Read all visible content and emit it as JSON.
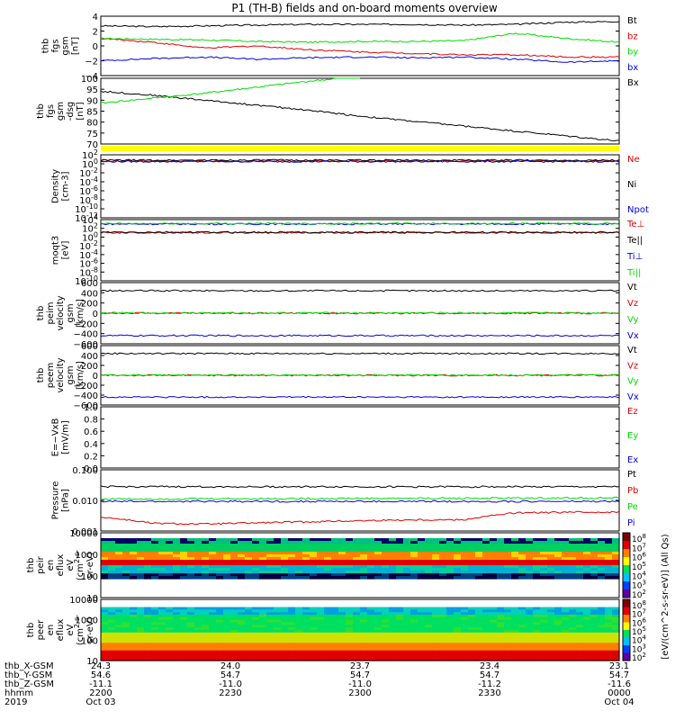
{
  "title": "P1 (TH-B) fields and on-board moments overview",
  "footer": {
    "labels": [
      "thb_X-GSM",
      "thb_Y-GSM",
      "thb_Z-GSM",
      "hhmm",
      "2019"
    ],
    "columns": [
      {
        "x": "24.3",
        "y": "54.6",
        "z": "-11.1",
        "hhmm": "2200",
        "date": "Oct 03"
      },
      {
        "x": "24.0",
        "y": "54.7",
        "z": "-11.0",
        "hhmm": "2230",
        "date": ""
      },
      {
        "x": "23.7",
        "y": "54.7",
        "z": "-11.0",
        "hhmm": "2300",
        "date": ""
      },
      {
        "x": "23.4",
        "y": "54.7",
        "z": "-11.2",
        "hhmm": "2330",
        "date": ""
      },
      {
        "x": "23.1",
        "y": "54.7",
        "z": "-11.6",
        "hhmm": "0000",
        "date": "Oct 04"
      }
    ]
  },
  "colorbar": {
    "label": "[eV/(cm^2-s-sr-eV)] (All Qs)",
    "ticks": [
      "10^8",
      "10^7",
      "10^6",
      "10^5",
      "10^4",
      "10^3",
      "10^2"
    ]
  },
  "colors": {
    "black": "#000000",
    "red": "#dd0000",
    "green": "#00dd00",
    "blue": "#0000dd",
    "yellow": "#ffff00",
    "purple": "#800080"
  },
  "chart_data": [
    {
      "type": "line",
      "ylabel": [
        "thb",
        "fgs",
        "gsm",
        "[nT]"
      ],
      "yticks": [
        "4",
        "2",
        "0",
        "−2",
        "−4"
      ],
      "ylim": [
        -4,
        4
      ],
      "series": [
        {
          "name": "Bt",
          "color": "black",
          "x": [
            0,
            0.1,
            0.2,
            0.3,
            0.4,
            0.5,
            0.6,
            0.7,
            0.8,
            0.9,
            1.0
          ],
          "y": [
            2.7,
            2.6,
            2.7,
            2.8,
            2.9,
            2.9,
            2.9,
            2.8,
            2.9,
            3.2,
            3.3
          ]
        },
        {
          "name": "bz",
          "color": "red",
          "x": [
            0,
            0.1,
            0.2,
            0.3,
            0.4,
            0.5,
            0.6,
            0.7,
            0.8,
            0.9,
            1.0
          ],
          "y": [
            1.0,
            0.5,
            -0.3,
            0.0,
            -0.5,
            -0.8,
            -1.0,
            -1.2,
            -1.2,
            -1.5,
            -1.5
          ]
        },
        {
          "name": "by",
          "color": "green",
          "x": [
            0,
            0.1,
            0.2,
            0.3,
            0.4,
            0.5,
            0.6,
            0.7,
            0.8,
            0.9,
            1.0
          ],
          "y": [
            1.0,
            0.9,
            0.8,
            0.6,
            0.5,
            0.6,
            0.6,
            0.7,
            1.7,
            1.0,
            0.5
          ]
        },
        {
          "name": "bx",
          "color": "blue",
          "x": [
            0,
            0.1,
            0.2,
            0.3,
            0.4,
            0.5,
            0.6,
            0.7,
            0.8,
            0.9,
            1.0
          ],
          "y": [
            -2.0,
            -1.7,
            -1.5,
            -1.8,
            -1.6,
            -1.5,
            -1.6,
            -1.5,
            -1.8,
            -2.2,
            -2.0
          ]
        }
      ]
    },
    {
      "type": "line",
      "ylabel": [
        "thb",
        "fgs",
        "gsm",
        "-dsg",
        "[nT]"
      ],
      "yticks": [
        "100",
        "95",
        "90",
        "85",
        "80",
        "75",
        "70"
      ],
      "ylim": [
        67,
        100
      ],
      "series": [
        {
          "name": "Bx",
          "color": "black",
          "x": [
            0,
            0.1,
            0.2,
            0.3,
            0.4,
            0.5,
            0.6,
            0.7,
            0.8,
            0.9,
            1.0
          ],
          "y": [
            93.5,
            91.5,
            89.0,
            86.5,
            84.0,
            81.0,
            78.5,
            76.0,
            73.5,
            71.0,
            68.5
          ]
        },
        {
          "name": "",
          "color": "green",
          "x": [
            0,
            0.1,
            0.2,
            0.3,
            0.4,
            0.5
          ],
          "y": [
            87.5,
            90.0,
            92.5,
            95.5,
            98.5,
            101
          ]
        }
      ]
    },
    {
      "type": "line",
      "ylabel": [
        "Density",
        "[cm-3]"
      ],
      "yticks": [
        "10^2",
        "10^0",
        "10^-2",
        "10^-4",
        "10^-6",
        "10^-8",
        "10^-10",
        "10^-12"
      ],
      "ylim": [
        -12,
        2
      ],
      "series": [
        {
          "name": "Ne",
          "color": "red",
          "x": [
            0,
            1
          ],
          "y": [
            0.6,
            0.6
          ]
        },
        {
          "name": "Ni",
          "color": "black",
          "x": [
            0,
            1
          ],
          "y": [
            0.8,
            0.8
          ]
        },
        {
          "name": "Npot",
          "color": "blue",
          "x": [
            0,
            1
          ],
          "y": [
            0.5,
            0.5
          ]
        }
      ]
    },
    {
      "type": "line",
      "ylabel": [
        "moqt3",
        "[eV]"
      ],
      "yticks": [
        "10^4",
        "10^2",
        "10^0",
        "10^-2",
        "10^-4",
        "10^-6",
        "10^-8",
        "10^-10"
      ],
      "ylim": [
        -10,
        4
      ],
      "series": [
        {
          "name": "Te⊥",
          "color": "red",
          "x": [
            0,
            1
          ],
          "y": [
            1.0,
            1.0
          ]
        },
        {
          "name": "Te||",
          "color": "black",
          "x": [
            0,
            1
          ],
          "y": [
            1.1,
            1.1
          ]
        },
        {
          "name": "Ti⊥",
          "color": "blue",
          "x": [
            0,
            1
          ],
          "y": [
            3.0,
            3.0
          ]
        },
        {
          "name": "Ti||",
          "color": "green",
          "x": [
            0,
            1
          ],
          "y": [
            3.1,
            3.1
          ]
        }
      ]
    },
    {
      "type": "line",
      "ylabel": [
        "thb",
        "peim",
        "velocity",
        "gsm",
        "[km/s]"
      ],
      "yticks": [
        "600",
        "400",
        "200",
        "0",
        "−200",
        "−400",
        "−600"
      ],
      "ylim": [
        -600,
        600
      ],
      "series": [
        {
          "name": "Vt",
          "color": "black",
          "x": [
            0,
            1
          ],
          "y": [
            440,
            440
          ]
        },
        {
          "name": "Vz",
          "color": "red",
          "x": [
            0,
            1
          ],
          "y": [
            0,
            0
          ]
        },
        {
          "name": "Vy",
          "color": "green",
          "x": [
            0,
            1
          ],
          "y": [
            5,
            5
          ]
        },
        {
          "name": "Vx",
          "color": "blue",
          "x": [
            0,
            1
          ],
          "y": [
            -440,
            -440
          ]
        }
      ]
    },
    {
      "type": "line",
      "ylabel": [
        "thb",
        "peem",
        "velocity",
        "gsm",
        "[km/s]"
      ],
      "yticks": [
        "600",
        "400",
        "200",
        "0",
        "−200",
        "−400",
        "−600"
      ],
      "ylim": [
        -600,
        600
      ],
      "series": [
        {
          "name": "Vt",
          "color": "black",
          "x": [
            0,
            1
          ],
          "y": [
            440,
            440
          ]
        },
        {
          "name": "Vz",
          "color": "red",
          "x": [
            0,
            1
          ],
          "y": [
            0,
            0
          ]
        },
        {
          "name": "Vy",
          "color": "green",
          "x": [
            0,
            1
          ],
          "y": [
            5,
            5
          ]
        },
        {
          "name": "Vx",
          "color": "blue",
          "x": [
            0,
            1
          ],
          "y": [
            -440,
            -440
          ]
        }
      ]
    },
    {
      "type": "line",
      "ylabel": [
        "E=−VxB",
        "[mV/m]"
      ],
      "yticks": [
        "1.0",
        "0.8",
        "0.6",
        "0.4",
        "0.2",
        "0.0"
      ],
      "ylim": [
        0,
        1
      ],
      "series": [
        {
          "name": "Ez",
          "color": "red",
          "x": [],
          "y": []
        },
        {
          "name": "Ey",
          "color": "green",
          "x": [],
          "y": []
        },
        {
          "name": "Ex",
          "color": "blue",
          "x": [],
          "y": []
        }
      ]
    },
    {
      "type": "line",
      "log": true,
      "ylabel": [
        "Pressure",
        "[nPa]"
      ],
      "yticks": [
        "0.100",
        "0.010",
        "0.001"
      ],
      "ylim": [
        0.0008,
        0.12
      ],
      "series": [
        {
          "name": "Pt",
          "color": "black",
          "x": [
            0,
            1
          ],
          "y": [
            0.03,
            0.03
          ]
        },
        {
          "name": "Pb",
          "color": "red",
          "x": [
            0,
            0.1,
            0.2,
            0.4,
            0.6,
            0.7,
            0.8,
            0.9,
            1.0
          ],
          "y": [
            0.0025,
            0.0015,
            0.0014,
            0.0017,
            0.002,
            0.002,
            0.0035,
            0.0037,
            0.0038
          ]
        },
        {
          "name": "Pe",
          "color": "green",
          "x": [
            0,
            1
          ],
          "y": [
            0.011,
            0.012
          ]
        },
        {
          "name": "Pi",
          "color": "blue",
          "x": [
            0,
            1
          ],
          "y": [
            0.009,
            0.009
          ]
        }
      ]
    },
    {
      "type": "heatmap",
      "ylabel": [
        "thb",
        "peir",
        "en",
        "eflux",
        "eV",
        "(cm^2-s-",
        "sr-eV)"
      ],
      "yticks": [
        "10000",
        "1000",
        "100",
        "10"
      ],
      "ylim": [
        5,
        20000
      ]
    },
    {
      "type": "heatmap",
      "ylabel": [
        "thb",
        "peer",
        "en",
        "eflux",
        "eV",
        "(cm^2-s-",
        "sr-eV)"
      ],
      "yticks": [
        "10000",
        "1000",
        "100",
        "10"
      ],
      "ylim": [
        5,
        20000
      ]
    }
  ]
}
